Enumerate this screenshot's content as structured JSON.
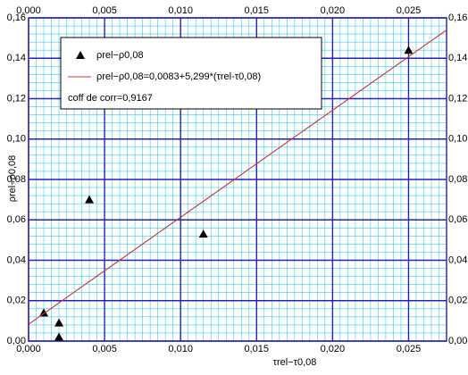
{
  "chart_data": {
    "type": "scatter",
    "x_label": "τrel−τ0,08",
    "y_label": "ρrel−ρ0,08",
    "annotation": "coff de corr=0,9167",
    "xlim": [
      0,
      0.0275
    ],
    "ylim": [
      0,
      0.16
    ],
    "xticks": [
      {
        "value": 0,
        "label": "0,000"
      },
      {
        "value": 0.005,
        "label": "0,005"
      },
      {
        "value": 0.01,
        "label": "0,010"
      },
      {
        "value": 0.015,
        "label": "0,015"
      },
      {
        "value": 0.02,
        "label": "0,020"
      },
      {
        "value": 0.025,
        "label": "0,025"
      }
    ],
    "yticks": [
      {
        "value": 0,
        "label": "0,00"
      },
      {
        "value": 0.02,
        "label": "0,02"
      },
      {
        "value": 0.04,
        "label": "0,04"
      },
      {
        "value": 0.06,
        "label": "0,06"
      },
      {
        "value": 0.08,
        "label": "0,08"
      },
      {
        "value": 0.1,
        "label": "0,10"
      },
      {
        "value": 0.12,
        "label": "0,12"
      },
      {
        "value": 0.14,
        "label": "0,14"
      },
      {
        "value": 0.16,
        "label": "0,16"
      }
    ],
    "grid": true,
    "series": [
      {
        "name": "ρrel−ρ0,08",
        "kind": "scatter",
        "marker": "triangle",
        "color": "#000000",
        "x": [
          0.001,
          0.002,
          0.002,
          0.004,
          0.0115,
          0.025
        ],
        "values": [
          0.014,
          0.009,
          0.002,
          0.07,
          0.053,
          0.144
        ]
      },
      {
        "name": "ρrel−ρ0,08=0,0083+5,299*(τrel-τ0,08)",
        "kind": "line",
        "color": "#cc3333",
        "x": [
          0,
          0.0275
        ],
        "values": [
          0.0083,
          0.154
        ]
      }
    ]
  }
}
